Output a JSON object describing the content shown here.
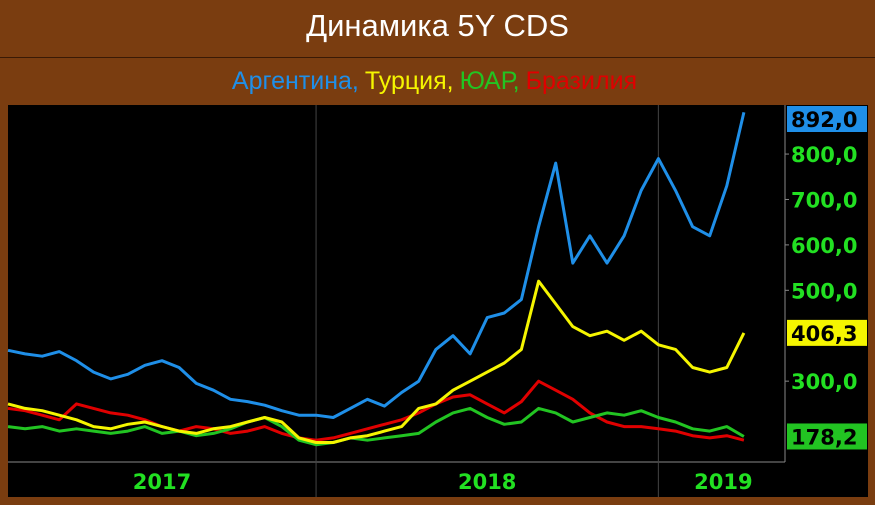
{
  "chart_data": {
    "type": "line",
    "title": "Динамика 5Y CDS",
    "x": [
      2017.1,
      2017.15,
      2017.2,
      2017.25,
      2017.3,
      2017.35,
      2017.4,
      2017.45,
      2017.5,
      2017.55,
      2017.6,
      2017.65,
      2017.7,
      2017.75,
      2017.8,
      2017.85,
      2017.9,
      2017.95,
      2018.0,
      2018.05,
      2018.1,
      2018.15,
      2018.2,
      2018.25,
      2018.3,
      2018.35,
      2018.4,
      2018.45,
      2018.5,
      2018.55,
      2018.6,
      2018.65,
      2018.7,
      2018.75,
      2018.8,
      2018.85,
      2018.9,
      2018.95,
      2019.0,
      2019.05,
      2019.1,
      2019.15,
      2019.2,
      2019.25
    ],
    "xlim": [
      2017.1,
      2019.37
    ],
    "xticks": [
      {
        "value": 2017.55,
        "label": "2017"
      },
      {
        "value": 2018.5,
        "label": "2018"
      },
      {
        "value": 2019.19,
        "label": "2019"
      }
    ],
    "xgrid": [
      2018,
      2019
    ],
    "ylim": [
      122,
      908
    ],
    "yticks": [
      {
        "value": 300,
        "label": "300,0"
      },
      {
        "value": 500,
        "label": "500,0"
      },
      {
        "value": 600,
        "label": "600,0"
      },
      {
        "value": 700,
        "label": "700,0"
      },
      {
        "value": 800,
        "label": "800,0"
      }
    ],
    "series": [
      {
        "name": "Аргентина,",
        "color": "#1f8fe8",
        "values": [
          368,
          360,
          355,
          365,
          345,
          320,
          305,
          315,
          335,
          345,
          330,
          295,
          280,
          260,
          255,
          247,
          235,
          225,
          225,
          220,
          240,
          260,
          245,
          275,
          300,
          370,
          400,
          360,
          440,
          450,
          480,
          640,
          780,
          560,
          620,
          560,
          620,
          720,
          790,
          720,
          640,
          620,
          730,
          892.0
        ],
        "value_labels": [
          null,
          null,
          null,
          null,
          null,
          null,
          null,
          null,
          null,
          null,
          null,
          null,
          null,
          null,
          null,
          null,
          null,
          null,
          null,
          null,
          null,
          null,
          null,
          null,
          null,
          null,
          null,
          null,
          null,
          null,
          null,
          null,
          null,
          null,
          null,
          null,
          null,
          null,
          null,
          null,
          null,
          null,
          null,
          "892,0"
        ]
      },
      {
        "name": "Турция,",
        "color": "#f5f500",
        "values": [
          250,
          240,
          235,
          225,
          215,
          200,
          195,
          205,
          210,
          200,
          190,
          185,
          195,
          200,
          210,
          220,
          210,
          175,
          165,
          165,
          175,
          180,
          190,
          200,
          240,
          250,
          280,
          300,
          320,
          340,
          370,
          520,
          470,
          420,
          400,
          410,
          390,
          410,
          380,
          370,
          330,
          320,
          330,
          406.3
        ],
        "value_labels": [
          null,
          null,
          null,
          null,
          null,
          null,
          null,
          null,
          null,
          null,
          null,
          null,
          null,
          null,
          null,
          null,
          null,
          null,
          null,
          null,
          null,
          null,
          null,
          null,
          null,
          null,
          null,
          null,
          null,
          null,
          null,
          null,
          null,
          null,
          null,
          null,
          null,
          null,
          null,
          null,
          null,
          null,
          null,
          "406,3"
        ]
      },
      {
        "name": "ЮАР,",
        "color": "#22c422",
        "values": [
          200,
          195,
          200,
          190,
          195,
          190,
          185,
          190,
          200,
          185,
          190,
          180,
          185,
          195,
          210,
          220,
          200,
          170,
          160,
          165,
          175,
          170,
          175,
          180,
          185,
          210,
          230,
          240,
          220,
          205,
          210,
          240,
          230,
          210,
          220,
          230,
          225,
          235,
          220,
          210,
          195,
          190,
          200,
          178.2
        ],
        "value_labels": [
          null,
          null,
          null,
          null,
          null,
          null,
          null,
          null,
          null,
          null,
          null,
          null,
          null,
          null,
          null,
          null,
          null,
          null,
          null,
          null,
          null,
          null,
          null,
          null,
          null,
          null,
          null,
          null,
          null,
          null,
          null,
          null,
          null,
          null,
          null,
          null,
          null,
          null,
          null,
          null,
          null,
          null,
          null,
          "178,2"
        ]
      },
      {
        "name": "Бразилия",
        "color": "#e00000",
        "values": [
          240,
          235,
          225,
          215,
          250,
          240,
          230,
          225,
          215,
          200,
          190,
          200,
          195,
          185,
          190,
          200,
          185,
          175,
          170,
          175,
          185,
          195,
          205,
          215,
          230,
          250,
          265,
          270,
          250,
          230,
          255,
          300,
          280,
          260,
          230,
          210,
          200,
          200,
          195,
          190,
          180,
          175,
          180,
          170
        ]
      }
    ]
  }
}
